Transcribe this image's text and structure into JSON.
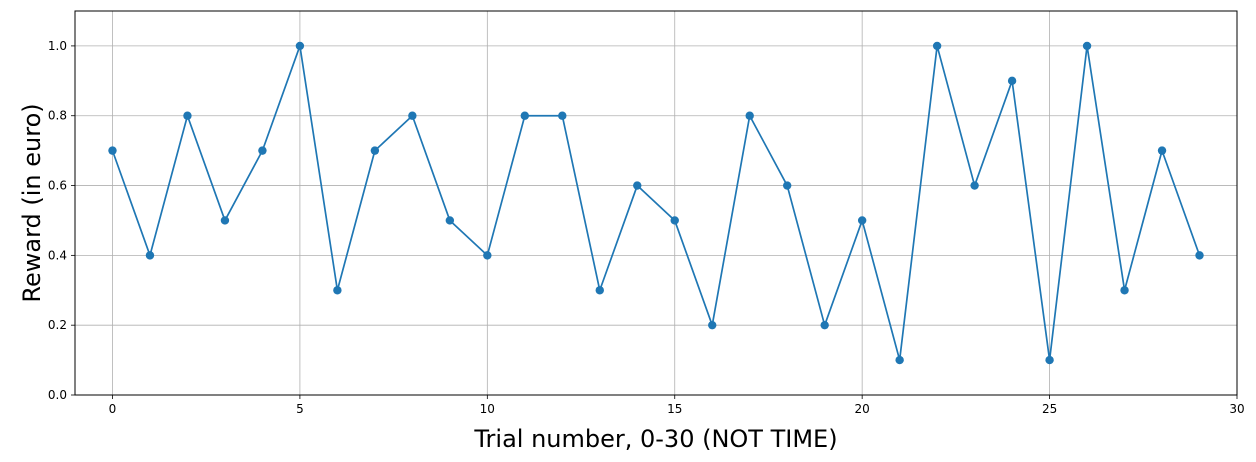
{
  "chart_data": {
    "type": "line",
    "title": "",
    "xlabel": "Trial number, 0-30 (NOT TIME)",
    "ylabel": "Reward (in euro)",
    "xlim": [
      -1,
      30
    ],
    "ylim": [
      0,
      1.1
    ],
    "xticks": [
      "0",
      "5",
      "10",
      "15",
      "20",
      "25",
      "30"
    ],
    "yticks": [
      "0.0",
      "0.2",
      "0.4",
      "0.6",
      "0.8",
      "1.0"
    ],
    "grid": true,
    "marker": "circle",
    "line_color": "#1f77b4",
    "x": [
      0,
      1,
      2,
      3,
      4,
      5,
      6,
      7,
      8,
      9,
      10,
      11,
      12,
      13,
      14,
      15,
      16,
      17,
      18,
      19,
      20,
      21,
      22,
      23,
      24,
      25,
      26,
      27,
      28,
      29
    ],
    "values": [
      0.7,
      0.4,
      0.8,
      0.5,
      0.7,
      1.0,
      0.3,
      0.7,
      0.8,
      0.5,
      0.4,
      0.8,
      0.8,
      0.3,
      0.6,
      0.5,
      0.2,
      0.8,
      0.6,
      0.2,
      0.5,
      0.1,
      1.0,
      0.6,
      0.9,
      0.1,
      1.0,
      0.3,
      0.7,
      0.4
    ]
  }
}
